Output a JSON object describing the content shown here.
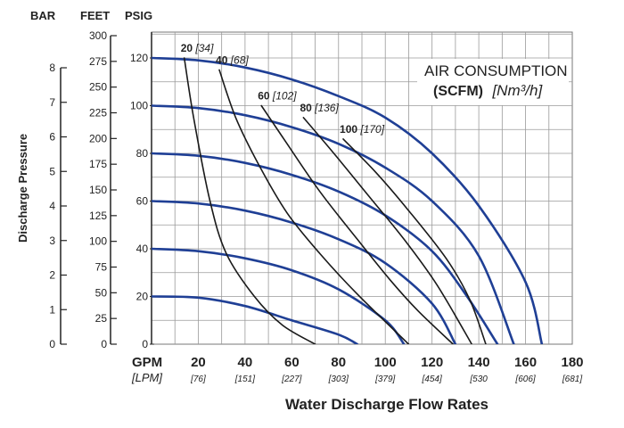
{
  "chart_data": {
    "type": "line",
    "title_line1": "AIR CONSUMPTION",
    "title_line2_bold": "(SCFM)",
    "title_line2_unit": "[Nm³/h]",
    "xlabel": "Water Discharge Flow Rates",
    "ylabel": "Discharge Pressure",
    "x_unit": "GPM",
    "x_unit_alt": "[LPM]",
    "axis_headers": {
      "bar": "BAR",
      "feet": "FEET",
      "psig": "PSIG"
    },
    "xlim": [
      0,
      180
    ],
    "ylim_psig": [
      0,
      120
    ],
    "x_ticks": [
      {
        "value": 20,
        "label": "20",
        "alt": "[76]"
      },
      {
        "value": 40,
        "label": "40",
        "alt": "[151]"
      },
      {
        "value": 60,
        "label": "60",
        "alt": "[227]"
      },
      {
        "value": 80,
        "label": "80",
        "alt": "[303]"
      },
      {
        "value": 100,
        "label": "100",
        "alt": "[379]"
      },
      {
        "value": 120,
        "label": "120",
        "alt": "[454]"
      },
      {
        "value": 140,
        "label": "140",
        "alt": "[530"
      },
      {
        "value": 160,
        "label": "160",
        "alt": "[606]"
      },
      {
        "value": 180,
        "label": "180",
        "alt": "[681]"
      }
    ],
    "psig_ticks": [
      "0",
      "20",
      "40",
      "60",
      "80",
      "100",
      "120"
    ],
    "feet_ticks": [
      {
        "value": 0,
        "label": "0"
      },
      {
        "value": 25,
        "label": "25"
      },
      {
        "value": 50,
        "label": "50"
      },
      {
        "value": 75,
        "label": "75"
      },
      {
        "value": 100,
        "label": "100"
      },
      {
        "value": 125,
        "label": "125"
      },
      {
        "value": 150,
        "label": "150"
      },
      {
        "value": 175,
        "label": "175"
      },
      {
        "value": 200,
        "label": "200"
      },
      {
        "value": 225,
        "label": "225"
      },
      {
        "value": 250,
        "label": "250"
      },
      {
        "value": 275,
        "label": "275"
      },
      {
        "value": 300,
        "label": "300"
      }
    ],
    "bar_ticks": [
      {
        "value": 0,
        "label": "0"
      },
      {
        "value": 1,
        "label": "1"
      },
      {
        "value": 2,
        "label": "2"
      },
      {
        "value": 3,
        "label": "3"
      },
      {
        "value": 4,
        "label": "4"
      },
      {
        "value": 5,
        "label": "5"
      },
      {
        "value": 6,
        "label": "6"
      },
      {
        "value": 7,
        "label": "7"
      },
      {
        "value": 8,
        "label": "8"
      }
    ],
    "grid": true,
    "pressure_curves": [
      {
        "points": [
          [
            0,
            120
          ],
          [
            20,
            119
          ],
          [
            40,
            116
          ],
          [
            60,
            111
          ],
          [
            80,
            104
          ],
          [
            100,
            95
          ],
          [
            120,
            80
          ],
          [
            140,
            58
          ],
          [
            160,
            26
          ],
          [
            167,
            0
          ]
        ]
      },
      {
        "points": [
          [
            0,
            100
          ],
          [
            20,
            99
          ],
          [
            40,
            96
          ],
          [
            60,
            91
          ],
          [
            80,
            84
          ],
          [
            100,
            74
          ],
          [
            120,
            60
          ],
          [
            140,
            37
          ],
          [
            155,
            0
          ]
        ]
      },
      {
        "points": [
          [
            0,
            80
          ],
          [
            20,
            79
          ],
          [
            40,
            76
          ],
          [
            60,
            71
          ],
          [
            80,
            64
          ],
          [
            100,
            54
          ],
          [
            120,
            39
          ],
          [
            135,
            20
          ],
          [
            148,
            0
          ]
        ]
      },
      {
        "points": [
          [
            0,
            60
          ],
          [
            20,
            59
          ],
          [
            40,
            56
          ],
          [
            60,
            51
          ],
          [
            80,
            44
          ],
          [
            100,
            34
          ],
          [
            120,
            17
          ],
          [
            130,
            0
          ]
        ]
      },
      {
        "points": [
          [
            0,
            40
          ],
          [
            20,
            39
          ],
          [
            40,
            36
          ],
          [
            60,
            31
          ],
          [
            80,
            23
          ],
          [
            100,
            10
          ],
          [
            108,
            0
          ]
        ]
      },
      {
        "points": [
          [
            0,
            20
          ],
          [
            20,
            19.5
          ],
          [
            40,
            16
          ],
          [
            60,
            10
          ],
          [
            80,
            4
          ],
          [
            88,
            0
          ]
        ]
      }
    ],
    "air_curves": [
      {
        "label": "20",
        "alt": "[34]",
        "points": [
          [
            14,
            120
          ],
          [
            18,
            95
          ],
          [
            25,
            60
          ],
          [
            32,
            38
          ],
          [
            44,
            20
          ],
          [
            56,
            8
          ],
          [
            70,
            0
          ]
        ]
      },
      {
        "label": "40",
        "alt": "[68]",
        "points": [
          [
            29,
            115
          ],
          [
            36,
            95
          ],
          [
            46,
            75
          ],
          [
            58,
            55
          ],
          [
            72,
            38
          ],
          [
            88,
            21
          ],
          [
            110,
            0
          ]
        ]
      },
      {
        "label": "60",
        "alt": "[102]",
        "points": [
          [
            47,
            100
          ],
          [
            58,
            84
          ],
          [
            72,
            64
          ],
          [
            88,
            44
          ],
          [
            102,
            27
          ],
          [
            114,
            14
          ],
          [
            129,
            0
          ]
        ]
      },
      {
        "label": "80",
        "alt": "[136]",
        "points": [
          [
            65,
            95
          ],
          [
            78,
            80
          ],
          [
            93,
            62
          ],
          [
            108,
            44
          ],
          [
            122,
            25
          ],
          [
            137,
            0
          ]
        ]
      },
      {
        "label": "100",
        "alt": "[170]",
        "points": [
          [
            82,
            86
          ],
          [
            96,
            72
          ],
          [
            110,
            56
          ],
          [
            126,
            36
          ],
          [
            136,
            19
          ],
          [
            143,
            0
          ]
        ]
      }
    ]
  }
}
